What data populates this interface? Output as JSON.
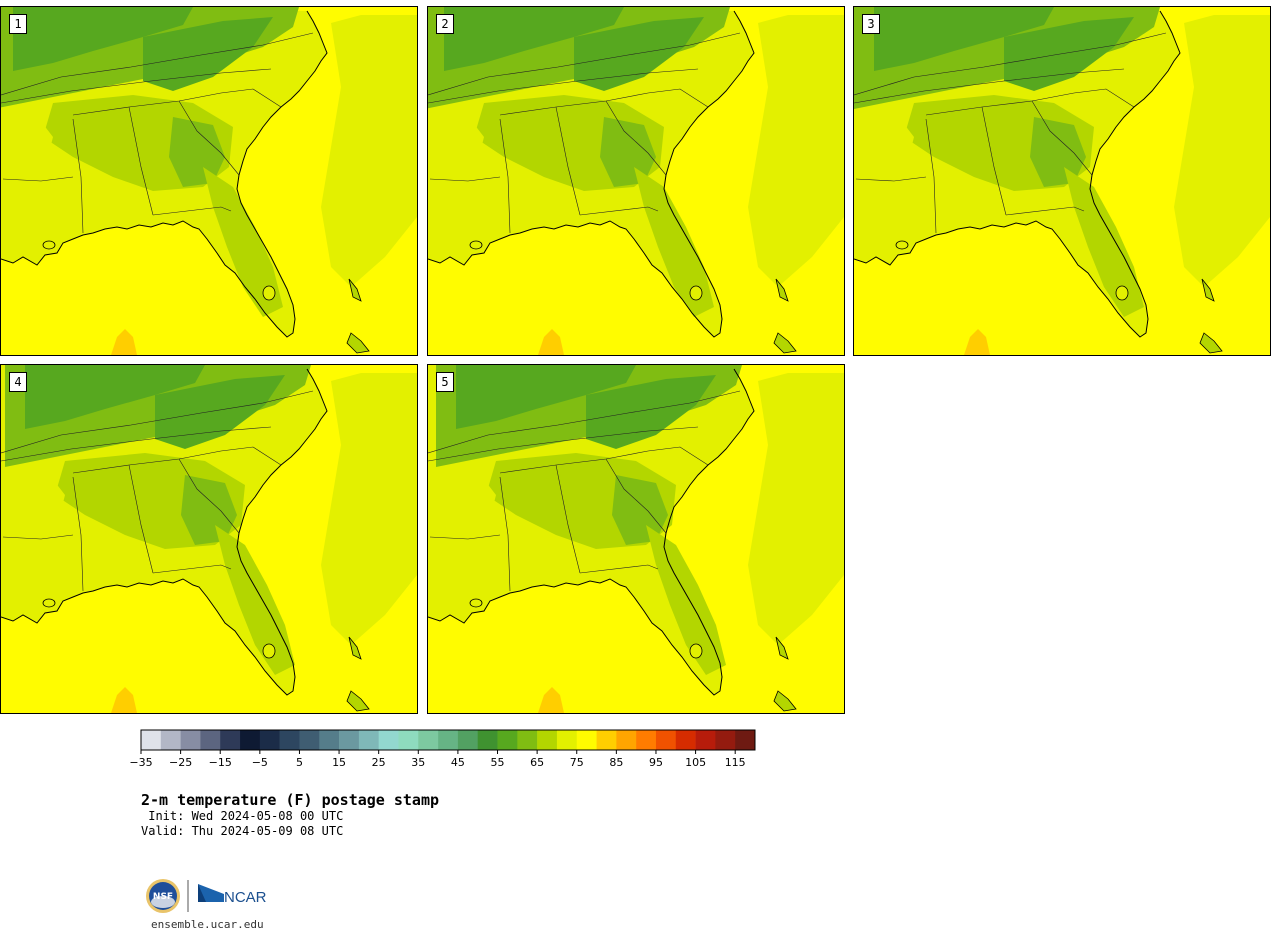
{
  "panels": [
    {
      "label": "1"
    },
    {
      "label": "2"
    },
    {
      "label": "3"
    },
    {
      "label": "4"
    },
    {
      "label": "5"
    }
  ],
  "colorbar": {
    "colors": [
      "#dfe3ea",
      "#b2b7c6",
      "#878da3",
      "#5c6580",
      "#2e3a58",
      "#0e1a33",
      "#1b2c48",
      "#2d4660",
      "#3f5d72",
      "#557d8a",
      "#6b99a0",
      "#7fb8b8",
      "#92d8cf",
      "#8edbbe",
      "#7dc9a0",
      "#66b485",
      "#52a162",
      "#3f9230",
      "#57a81f",
      "#80bd12",
      "#b3d600",
      "#e3f000",
      "#fffc00",
      "#ffce00",
      "#ffa500",
      "#ff7c00",
      "#f05200",
      "#d62c00",
      "#b71c0b",
      "#941b0f",
      "#6e1a12"
    ],
    "ticks": [
      "−35",
      "−25",
      "−15",
      "−5",
      "5",
      "15",
      "25",
      "35",
      "45",
      "55",
      "65",
      "75",
      "85",
      "95",
      "105",
      "115"
    ]
  },
  "title": "2-m temperature (F) postage stamp",
  "init_line": " Init: Wed 2024-05-08 00 UTC",
  "valid_line": "Valid: Thu 2024-05-09 08 UTC",
  "footer": {
    "url": "ensemble.ucar.edu",
    "nsf_logo_text": "NSF",
    "ncar_logo_text": "NCAR"
  }
}
